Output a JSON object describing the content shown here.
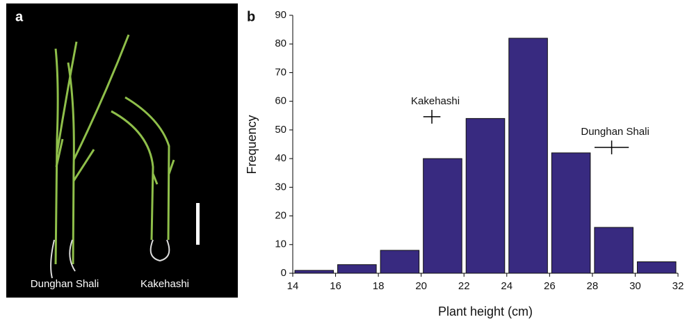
{
  "panel_a": {
    "label": "a",
    "plant_labels": [
      "Dunghan Shali",
      "Kakehashi"
    ]
  },
  "chart_data": {
    "type": "histogram",
    "panel_label": "b",
    "xlabel": "Plant height (cm)",
    "ylabel": "Frequency",
    "bins": [
      14,
      16,
      18,
      20,
      22,
      24,
      26,
      28,
      30,
      32
    ],
    "values": [
      1,
      3,
      8,
      40,
      54,
      82,
      42,
      16,
      4
    ],
    "color": "#382a80",
    "xlim": [
      14,
      32
    ],
    "xticks": [
      14,
      16,
      18,
      20,
      22,
      24,
      26,
      28,
      30,
      32
    ],
    "ylim": [
      0,
      90
    ],
    "yticks": [
      0,
      10,
      20,
      30,
      40,
      50,
      60,
      70,
      80,
      90
    ],
    "annotations": [
      {
        "text": "Kakehashi",
        "x": 20.5,
        "y": 54.6,
        "xerr": 0.4,
        "yerr": 2.4
      },
      {
        "text": "Dunghan Shali",
        "x": 28.9,
        "y": 43.9,
        "xerr": 0.8,
        "yerr": 2.4
      }
    ]
  }
}
